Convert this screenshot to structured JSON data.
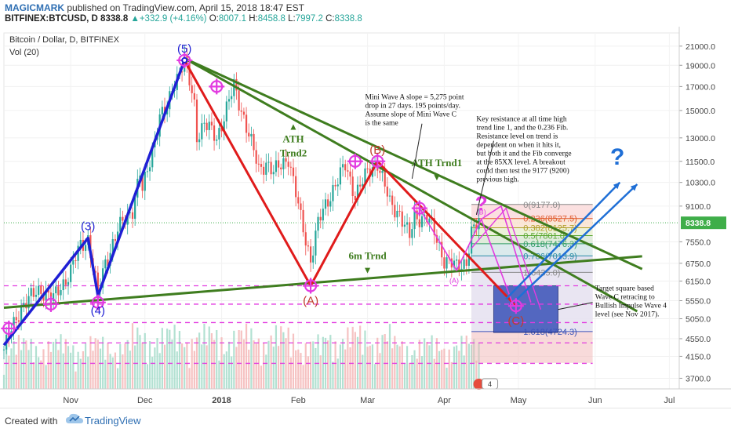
{
  "header": {
    "author": "MAGICMARK",
    "published": "published on TradingView.com, April 15, 2018 18:47 EST",
    "symbol": "BITFINEX:BTCUSD, D",
    "last": "8338.8",
    "change_arrow": "▲",
    "change": "+332.9 (+4.16%)",
    "o_label": "O:",
    "o": "8007.1",
    "h_label": "H:",
    "h": "8458.8",
    "l_label": "L:",
    "l": "7997.2",
    "c_label": "C:",
    "c": "8338.8"
  },
  "legend": {
    "title": "Bitcoin / Dollar, D, BITFINEX",
    "vol": "Vol (20)"
  },
  "footer": {
    "created_with": "Created with",
    "brand": "TradingView"
  },
  "colors": {
    "impulse": "#1f1fd4",
    "correction": "#e01b1b",
    "trend": "#3f7d1f",
    "fib_box": "#f2b6b6",
    "target": "#3a52b8",
    "magenta": "#e23be0",
    "projection": "#1f6fd6",
    "last_price": "#3fae49"
  },
  "chart_data": {
    "type": "candlestick",
    "title": "Bitcoin / Dollar, D, BITFINEX",
    "y_axis": {
      "scale": "log",
      "ticks": [
        21000,
        19000,
        17000,
        15000,
        13000,
        11500,
        10300,
        9100,
        8338.8,
        7550,
        6750,
        6150,
        5550,
        5050,
        4550,
        4150,
        3700
      ],
      "tick_labels": [
        "21000.0",
        "19000.0",
        "17000.0",
        "15000.0",
        "13000.0",
        "11500.0",
        "10300.0",
        "9100.0",
        "8338.8",
        "7550.0",
        "6750.0",
        "6150.0",
        "5550.0",
        "5050.0",
        "4550.0",
        "4150.0",
        "3700.0"
      ],
      "last_price_label": "8338.8",
      "range": [
        3500,
        22500
      ]
    },
    "x_axis": {
      "labels": [
        "Nov",
        "Dec",
        "2018",
        "Feb",
        "Mar",
        "Apr",
        "May",
        "Jun",
        "Jul"
      ],
      "label_dates": [
        "2017-11-01",
        "2017-12-01",
        "2018-01-01",
        "2018-02-01",
        "2018-03-01",
        "2018-04-01",
        "2018-05-01",
        "2018-06-01",
        "2018-07-01"
      ],
      "range": [
        "2017-10-05",
        "2018-07-05"
      ]
    },
    "price_path": [
      [
        "2017-10-05",
        4300
      ],
      [
        "2017-10-12",
        5400
      ],
      [
        "2017-10-20",
        5900
      ],
      [
        "2017-10-25",
        5600
      ],
      [
        "2017-11-01",
        6500
      ],
      [
        "2017-11-05",
        7400
      ],
      [
        "2017-11-08",
        7700
      ],
      [
        "2017-11-12",
        5700
      ],
      [
        "2017-11-15",
        6800
      ],
      [
        "2017-11-20",
        8000
      ],
      [
        "2017-11-26",
        9000
      ],
      [
        "2017-11-29",
        10800
      ],
      [
        "2017-11-30",
        9800
      ],
      [
        "2017-12-07",
        14500
      ],
      [
        "2017-12-10",
        15000
      ],
      [
        "2017-12-12",
        17000
      ],
      [
        "2017-12-17",
        19500
      ],
      [
        "2017-12-21",
        15500
      ],
      [
        "2017-12-22",
        13200
      ],
      [
        "2017-12-25",
        14000
      ],
      [
        "2017-12-30",
        13000
      ],
      [
        "2018-01-06",
        17000
      ],
      [
        "2018-01-10",
        14500
      ],
      [
        "2018-01-16",
        11000
      ],
      [
        "2018-01-19",
        11500
      ],
      [
        "2018-01-22",
        10800
      ],
      [
        "2018-01-28",
        11800
      ],
      [
        "2018-02-02",
        8500
      ],
      [
        "2018-02-06",
        6900
      ],
      [
        "2018-02-09",
        8300
      ],
      [
        "2018-02-15",
        10000
      ],
      [
        "2018-02-20",
        11200
      ],
      [
        "2018-02-24",
        9700
      ],
      [
        "2018-03-01",
        10800
      ],
      [
        "2018-03-05",
        11500
      ],
      [
        "2018-03-10",
        9200
      ],
      [
        "2018-03-14",
        8800
      ],
      [
        "2018-03-18",
        7700
      ],
      [
        "2018-03-20",
        8600
      ],
      [
        "2018-03-25",
        8600
      ],
      [
        "2018-03-28",
        7900
      ],
      [
        "2018-04-01",
        6900
      ],
      [
        "2018-04-06",
        6600
      ],
      [
        "2018-04-10",
        6850
      ],
      [
        "2018-04-12",
        7900
      ],
      [
        "2018-04-15",
        8338.8
      ]
    ],
    "volume_range": [
      0,
      90000
    ],
    "wave_labels": [
      {
        "text": "(3)",
        "date": "2017-11-08",
        "price": 7700
      },
      {
        "text": "(4)",
        "date": "2017-11-12",
        "price": 5700
      },
      {
        "text": "(5)",
        "date": "2017-12-17",
        "price": 19500
      },
      {
        "text": "(A)",
        "date": "2018-02-06",
        "price": 6000
      },
      {
        "text": "(B)",
        "date": "2018-03-05",
        "price": 11500
      },
      {
        "text": "(C)",
        "date": "2018-04-30",
        "price": 5400
      },
      {
        "text": "(A)",
        "date": "2018-04-05",
        "price": 6500
      },
      {
        "text": "(B)",
        "date": "2018-04-16",
        "price": 8500
      }
    ],
    "lines": {
      "impulse": [
        [
          "2017-10-05",
          4400
        ],
        [
          "2017-11-08",
          7700
        ],
        [
          "2017-11-12",
          5700
        ],
        [
          "2017-12-17",
          19500
        ]
      ],
      "correction": [
        [
          "2017-12-17",
          19500
        ],
        [
          "2018-02-06",
          6000
        ],
        [
          "2018-03-05",
          11500
        ],
        [
          "2018-04-30",
          5400
        ]
      ],
      "ath_trnd1": [
        [
          "2017-12-17",
          19700
        ],
        [
          "2018-06-20",
          6550
        ]
      ],
      "ath_trnd2": [
        [
          "2017-12-17",
          19700
        ],
        [
          "2018-06-18",
          5250
        ]
      ],
      "six_m_trnd": [
        [
          "2017-10-05",
          5350
        ],
        [
          "2018-06-20",
          7000
        ]
      ]
    },
    "trend_labels": [
      {
        "text": "ATH",
        "date": "2018-01-30",
        "price": 12700
      },
      {
        "text": "Trnd2",
        "date": "2018-01-30",
        "price": 11800
      },
      {
        "text": "ATH Trnd1",
        "date": "2018-03-29",
        "price": 11200
      },
      {
        "text": "6m Trnd",
        "date": "2018-03-01",
        "price": 6900
      }
    ],
    "horizontal_levels": [
      6000,
      5450,
      4950,
      4450,
      4000
    ],
    "fib_levels": [
      {
        "label": "0(9177.0)",
        "price": 9177.0
      },
      {
        "label": "0.236(8527.5)",
        "price": 8527.5
      },
      {
        "label": "0.382(8125.7)",
        "price": 8125.7
      },
      {
        "label": "0.5(7801.0)",
        "price": 7801.0
      },
      {
        "label": "0.618(7476.3)",
        "price": 7476.3
      },
      {
        "label": "0.786(7013.9)",
        "price": 7013.9
      },
      {
        "label": "1(6435.0)",
        "price": 6435.0
      },
      {
        "label": "1.618(4724.3)",
        "price": 4724.3
      }
    ],
    "annotations": [
      {
        "text": [
          "Mini Wave A slope = 5,275 point",
          "drop in 27 days. 195 points/day.",
          "Assume slope of Mini Wave C",
          "is the same"
        ]
      },
      {
        "text": [
          "Key resistance at all time high",
          "trend line 1, and the 0.236 Fib.",
          "Resistance level on trend is",
          "dependent on when it hits it,",
          "but both it and the Fib converge",
          "at the 85XX level. A breakout",
          "could then test the 9177 (9200)",
          "previous high."
        ]
      },
      {
        "text": [
          "Target square based",
          "Wave C retracing to",
          "Bullish Impulse Wave 4",
          "level (see Nov 2017)."
        ]
      },
      {
        "text": [
          "?"
        ]
      },
      {
        "text": [
          "?"
        ]
      }
    ],
    "events_badge": "4"
  }
}
